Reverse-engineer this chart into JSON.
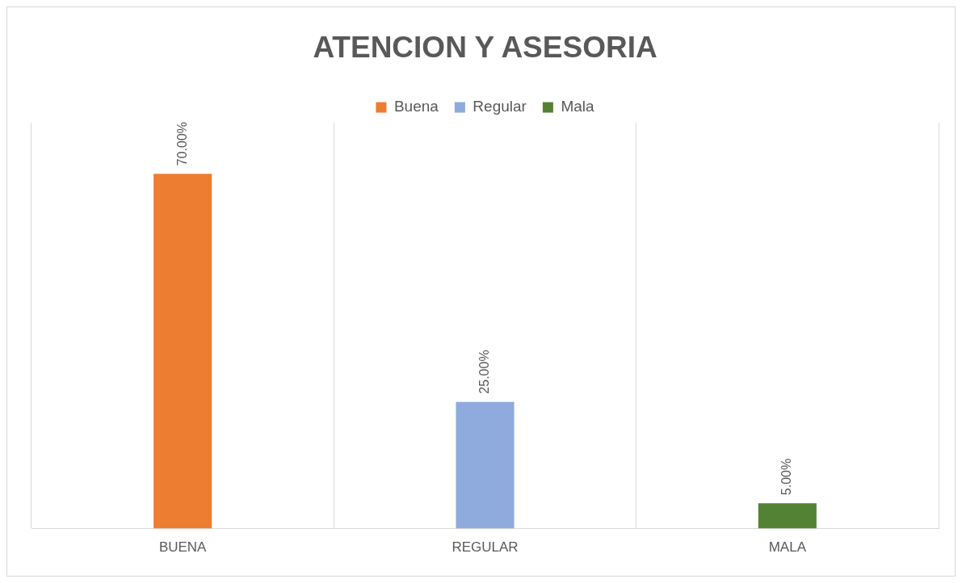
{
  "chart_data": {
    "type": "bar",
    "title": "ATENCION Y ASESORIA",
    "categories": [
      "BUENA",
      "REGULAR",
      "MALA"
    ],
    "series": [
      {
        "name": "Buena",
        "color": "#ed7d31",
        "values": [
          70,
          null,
          null
        ],
        "value_labels": [
          "70.00%",
          null,
          null
        ]
      },
      {
        "name": "Regular",
        "color": "#8faadc",
        "values": [
          null,
          25,
          null
        ],
        "value_labels": [
          null,
          "25.00%",
          null
        ]
      },
      {
        "name": "Mala",
        "color": "#548235",
        "values": [
          null,
          null,
          5
        ],
        "value_labels": [
          null,
          null,
          "5.00%"
        ]
      }
    ],
    "ylim": [
      0,
      80
    ],
    "tick_labels": "x",
    "grid": "x",
    "legend": "top"
  }
}
